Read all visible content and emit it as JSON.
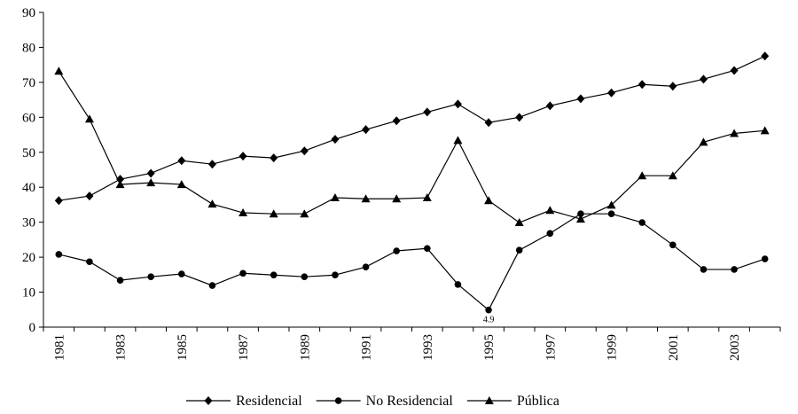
{
  "chart_data": {
    "type": "line",
    "categories": [
      "1981",
      null,
      "1983",
      null,
      "1985",
      null,
      "1987",
      null,
      "1989",
      null,
      "1991",
      null,
      "1993",
      null,
      "1995",
      null,
      "1997",
      null,
      "1999",
      null,
      "2001",
      null,
      "2003",
      null
    ],
    "series": [
      {
        "name": "Residencial",
        "color": "#000000",
        "marker": "diamond",
        "values": [
          36.2,
          37.5,
          42.3,
          44,
          47.6,
          46.6,
          48.9,
          48.4,
          50.4,
          53.7,
          56.5,
          59,
          61.5,
          63.8,
          58.5,
          60,
          63.3,
          65.3,
          67,
          69.4,
          68.9,
          70.9,
          73.4,
          77.5
        ]
      },
      {
        "name": "No Residencial",
        "color": "#000000",
        "marker": "circle",
        "values": [
          20.8,
          18.7,
          13.4,
          14.4,
          15.2,
          11.9,
          15.4,
          14.9,
          14.4,
          14.9,
          17.2,
          21.8,
          22.5,
          12.2,
          4.9,
          22,
          26.8,
          32.4,
          32.4,
          29.9,
          23.5,
          16.5,
          16.5,
          19.5
        ],
        "value_labels": [
          null,
          null,
          null,
          null,
          null,
          null,
          null,
          null,
          null,
          null,
          null,
          null,
          null,
          null,
          "4.9",
          null,
          null,
          null,
          null,
          null,
          null,
          null,
          null,
          null
        ]
      },
      {
        "name": "Pública",
        "color": "#000000",
        "marker": "triangle",
        "values": [
          73.2,
          59.5,
          40.8,
          41.3,
          40.8,
          35.2,
          32.7,
          32.4,
          32.4,
          37,
          36.7,
          36.7,
          37,
          53.4,
          36.2,
          29.9,
          33.4,
          30.9,
          34.9,
          43.3,
          43.3,
          52.9,
          55.4,
          56.2
        ]
      }
    ],
    "ylim": [
      0,
      90
    ],
    "yticks": [
      0,
      10,
      20,
      30,
      40,
      50,
      60,
      70,
      80,
      90
    ],
    "grid": false,
    "legend": "bottom"
  }
}
